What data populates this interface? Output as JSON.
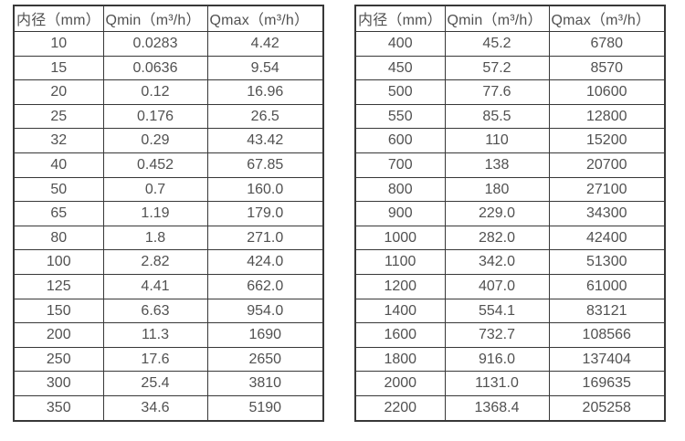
{
  "colors": {
    "border": "#383838",
    "text": "#515151",
    "background": "#ffffff"
  },
  "chart_data": [
    {
      "type": "table",
      "name": "flow-spec-table-small-diameters",
      "columns": [
        "内径（mm）",
        "Qmin（m³/h）",
        "Qmax（m³/h）"
      ],
      "rows": [
        [
          "10",
          "0.0283",
          "4.42"
        ],
        [
          "15",
          "0.0636",
          "9.54"
        ],
        [
          "20",
          "0.12",
          "16.96"
        ],
        [
          "25",
          "0.176",
          "26.5"
        ],
        [
          "32",
          "0.29",
          "43.42"
        ],
        [
          "40",
          "0.452",
          "67.85"
        ],
        [
          "50",
          "0.7",
          "160.0"
        ],
        [
          "65",
          "1.19",
          "179.0"
        ],
        [
          "80",
          "1.8",
          "271.0"
        ],
        [
          "100",
          "2.82",
          "424.0"
        ],
        [
          "125",
          "4.41",
          "662.0"
        ],
        [
          "150",
          "6.63",
          "954.0"
        ],
        [
          "200",
          "11.3",
          "1690"
        ],
        [
          "250",
          "17.6",
          "2650"
        ],
        [
          "300",
          "25.4",
          "3810"
        ],
        [
          "350",
          "34.6",
          "5190"
        ]
      ]
    },
    {
      "type": "table",
      "name": "flow-spec-table-large-diameters",
      "columns": [
        "内径（mm）",
        "Qmin（m³/h）",
        "Qmax（m³/h）"
      ],
      "rows": [
        [
          "400",
          "45.2",
          "6780"
        ],
        [
          "450",
          "57.2",
          "8570"
        ],
        [
          "500",
          "77.6",
          "10600"
        ],
        [
          "550",
          "85.5",
          "12800"
        ],
        [
          "600",
          "110",
          "15200"
        ],
        [
          "700",
          "138",
          "20700"
        ],
        [
          "800",
          "180",
          "27100"
        ],
        [
          "900",
          "229.0",
          "34300"
        ],
        [
          "1000",
          "282.0",
          "42400"
        ],
        [
          "1100",
          "342.0",
          "51300"
        ],
        [
          "1200",
          "407.0",
          "61000"
        ],
        [
          "1400",
          "554.1",
          "83121"
        ],
        [
          "1600",
          "732.7",
          "108566"
        ],
        [
          "1800",
          "916.0",
          "137404"
        ],
        [
          "2000",
          "1131.0",
          "169635"
        ],
        [
          "2200",
          "1368.4",
          "205258"
        ]
      ]
    }
  ]
}
